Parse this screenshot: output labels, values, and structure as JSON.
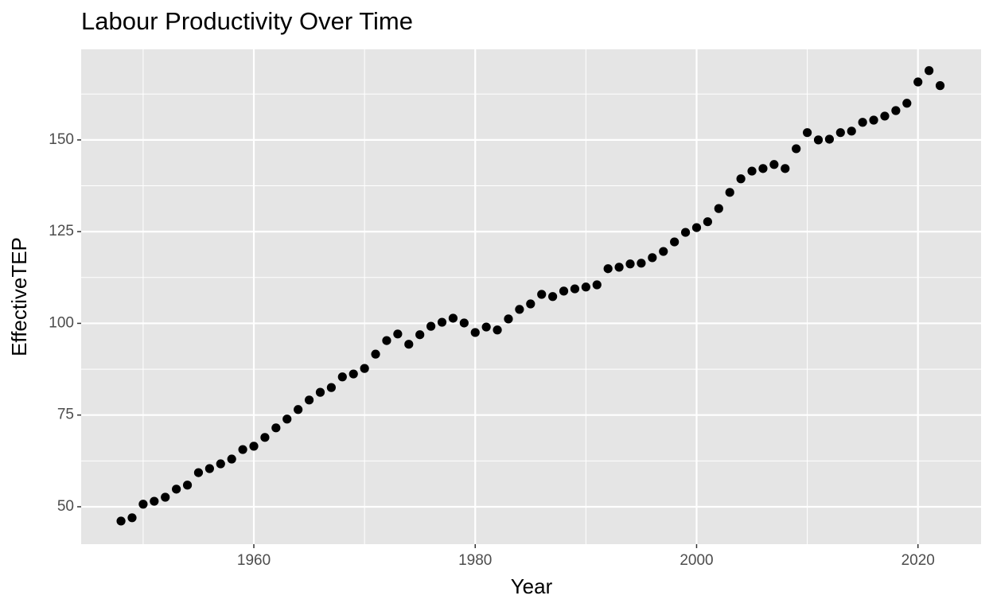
{
  "chart_data": {
    "type": "scatter",
    "title": "Labour Productivity Over Time",
    "x_label": "Year",
    "y_label": "EffectiveTEP",
    "x": [
      1948,
      1949,
      1950,
      1951,
      1952,
      1953,
      1954,
      1955,
      1956,
      1957,
      1958,
      1959,
      1960,
      1961,
      1962,
      1963,
      1964,
      1965,
      1966,
      1967,
      1968,
      1969,
      1970,
      1971,
      1972,
      1973,
      1974,
      1975,
      1976,
      1977,
      1978,
      1979,
      1980,
      1981,
      1982,
      1983,
      1984,
      1985,
      1986,
      1987,
      1988,
      1989,
      1990,
      1991,
      1992,
      1993,
      1994,
      1995,
      1996,
      1997,
      1998,
      1999,
      2000,
      2001,
      2002,
      2003,
      2004,
      2005,
      2006,
      2007,
      2008,
      2009,
      2010,
      2011,
      2012,
      2013,
      2014,
      2015,
      2016,
      2017,
      2018,
      2019,
      2020,
      2021,
      2022
    ],
    "values": [
      46.1,
      47.0,
      50.7,
      51.5,
      52.6,
      54.8,
      55.9,
      59.3,
      60.4,
      61.7,
      63.0,
      65.6,
      66.5,
      68.9,
      71.5,
      73.9,
      76.5,
      79.1,
      81.2,
      82.5,
      85.4,
      86.2,
      87.7,
      91.6,
      95.3,
      97.1,
      94.3,
      96.9,
      99.2,
      100.3,
      101.4,
      100.1,
      97.5,
      99.0,
      98.2,
      101.2,
      103.8,
      105.3,
      107.9,
      107.3,
      108.8,
      109.4,
      109.9,
      110.5,
      114.9,
      115.3,
      116.2,
      116.4,
      117.9,
      119.6,
      122.2,
      124.8,
      126.1,
      127.7,
      131.3,
      135.7,
      139.4,
      141.5,
      142.2,
      143.3,
      142.2,
      147.6,
      152.0,
      150.0,
      150.2,
      152.0,
      152.4,
      154.8,
      155.4,
      156.5,
      158.0,
      160.0,
      165.8,
      168.9,
      164.8
    ],
    "color": "#000000",
    "xlim": [
      1944.4,
      2025.7
    ],
    "xticks": [
      1960,
      1980,
      2000,
      2020
    ],
    "ylim": [
      39.8,
      174.7
    ],
    "yticks": [
      50,
      75,
      100,
      125,
      150
    ],
    "grid": true,
    "minor_grid": true,
    "panel_color": "#e5e5e5"
  }
}
